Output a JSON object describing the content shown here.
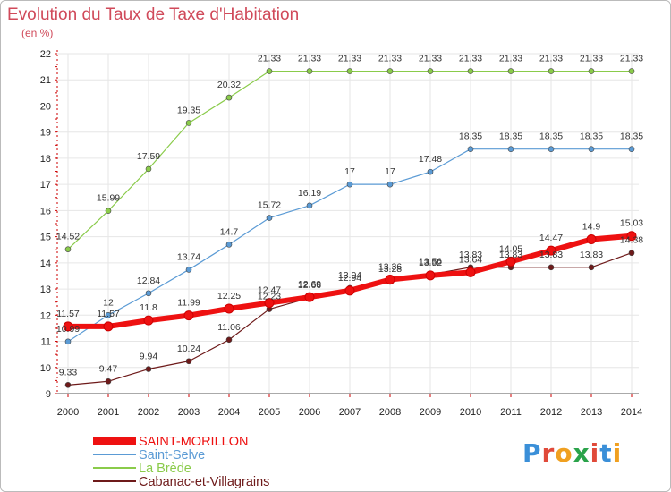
{
  "header": {
    "title": "Evolution du Taux de Taxe d'Habitation",
    "unit": "(en %)"
  },
  "logo": {
    "text": "Proxiti",
    "letters": [
      "P",
      "r",
      "o",
      "x",
      "i",
      "t",
      "i"
    ],
    "colors": [
      "#3a8fd8",
      "#e04a3a",
      "#f0a020",
      "#2aa34a",
      "#e04a3a",
      "#3a8fd8",
      "#f0a020"
    ]
  },
  "chart_data": {
    "type": "line",
    "title": "Evolution du Taux de Taxe d'Habitation",
    "ylabel": "(en %)",
    "xlabel": "",
    "ylim": [
      9,
      22
    ],
    "yticks": [
      9,
      10,
      11,
      12,
      13,
      14,
      15,
      16,
      17,
      18,
      19,
      20,
      21,
      22
    ],
    "grid": true,
    "legend": "bottom-left",
    "x": [
      "2000",
      "2001",
      "2002",
      "2003",
      "2004",
      "2005",
      "2006",
      "2007",
      "2008",
      "2009",
      "2010",
      "2011",
      "2012",
      "2013",
      "2014"
    ],
    "series": [
      {
        "name": "Cabanac-et-Villagrains",
        "color": "#6e1a1a",
        "width": 1.2,
        "labelColor": "#333333",
        "values": [
          9.33,
          9.47,
          9.94,
          10.24,
          11.06,
          12.23,
          12.66,
          13.04,
          13.28,
          13.56,
          13.83,
          13.83,
          13.83,
          13.83,
          14.38
        ],
        "labels": [
          "9.33",
          "9.47",
          "9.94",
          "10.24",
          "11.06",
          "12.23",
          "12.66",
          "13.04",
          "13.28",
          "13.56",
          "13.83",
          "13.83",
          "13.83",
          "13.83",
          "14.38"
        ]
      },
      {
        "name": "La Brède",
        "color": "#8acb4a",
        "width": 1.2,
        "labelColor": "#333333",
        "values": [
          14.52,
          15.99,
          17.59,
          19.35,
          20.32,
          21.33,
          21.33,
          21.33,
          21.33,
          21.33,
          21.33,
          21.33,
          21.33,
          21.33,
          21.33
        ],
        "labels": [
          "14.52",
          "15.99",
          "17.59",
          "19.35",
          "20.32",
          "21.33",
          "21.33",
          "21.33",
          "21.33",
          "21.33",
          "21.33",
          "21.33",
          "21.33",
          "21.33",
          "21.33"
        ]
      },
      {
        "name": "Saint-Selve",
        "color": "#5b9bd5",
        "width": 1.2,
        "labelColor": "#333333",
        "values": [
          10.99,
          12,
          12.84,
          13.74,
          14.7,
          15.72,
          16.19,
          17,
          17,
          17.48,
          18.35,
          18.35,
          18.35,
          18.35,
          18.35
        ],
        "labels": [
          "10.99",
          "12",
          "12.84",
          "13.74",
          "14.7",
          "15.72",
          "16.19",
          "17",
          "17",
          "17.48",
          "18.35",
          "18.35",
          "18.35",
          "18.35",
          "18.35"
        ]
      },
      {
        "name": "SAINT-MORILLON",
        "color": "#ee1111",
        "width": 6,
        "labelColor": "#333333",
        "values": [
          11.57,
          11.57,
          11.8,
          11.99,
          12.25,
          12.47,
          12.69,
          12.94,
          13.36,
          13.52,
          13.64,
          14.05,
          14.47,
          14.9,
          15.03
        ],
        "labels": [
          "11.57",
          "11.57",
          "11.8",
          "11.99",
          "12.25",
          "12.47",
          "12.69",
          "12.94",
          "13.36",
          "13.52",
          "13.64",
          "14.05",
          "14.47",
          "14.9",
          "15.03"
        ]
      }
    ]
  },
  "legend": [
    {
      "name": "SAINT-MORILLON",
      "color": "#ee1111",
      "width": 8
    },
    {
      "name": "Saint-Selve",
      "color": "#5b9bd5",
      "width": 2
    },
    {
      "name": "La Brède",
      "color": "#8acb4a",
      "width": 2
    },
    {
      "name": "Cabanac-et-Villagrains",
      "color": "#6e1a1a",
      "width": 2
    }
  ]
}
